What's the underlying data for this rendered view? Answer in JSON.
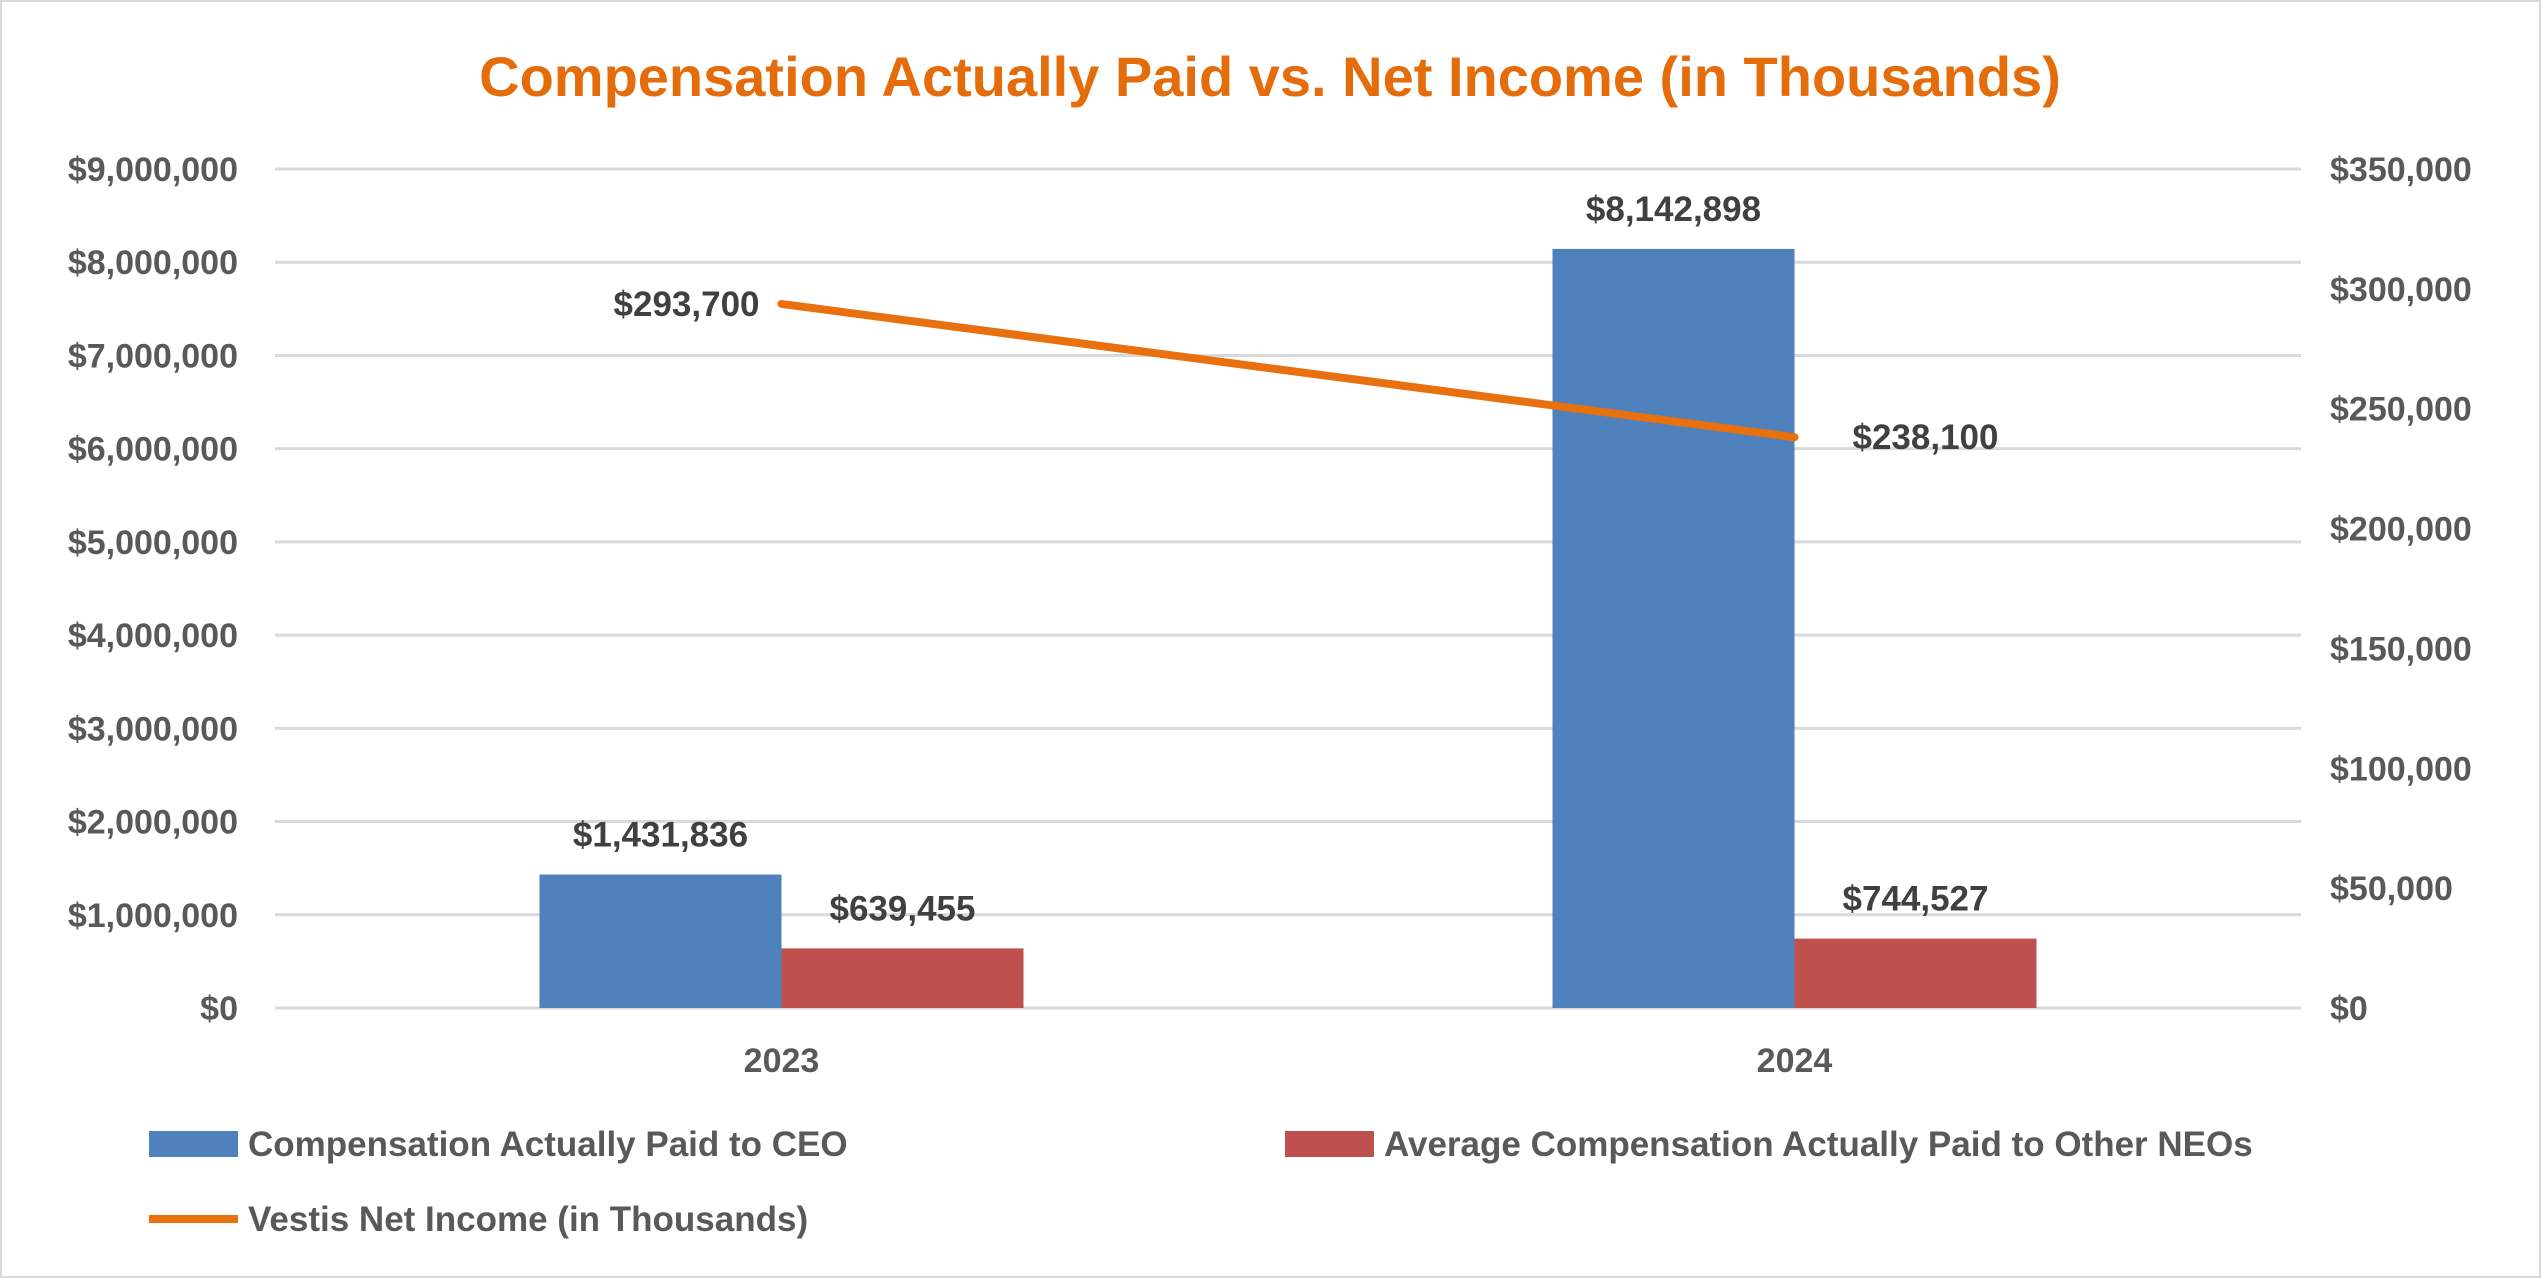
{
  "chart_data": {
    "type": "bar",
    "title": "Compensation Actually Paid vs. Net Income (in Thousands)",
    "categories": [
      "2023",
      "2024"
    ],
    "series": [
      {
        "name": "Compensation Actually Paid to CEO",
        "type": "bar",
        "axis": "left",
        "color": "#4F81BD",
        "values": [
          1431836,
          8142898
        ],
        "labels": [
          "$1,431,836",
          "$8,142,898"
        ]
      },
      {
        "name": "Average Compensation Actually Paid to Other NEOs",
        "type": "bar",
        "axis": "left",
        "color": "#C0504D",
        "values": [
          639455,
          744527
        ],
        "labels": [
          "$639,455",
          "$744,527"
        ]
      },
      {
        "name": "Vestis Net Income (in Thousands)",
        "type": "line",
        "axis": "right",
        "color": "#E8700E",
        "values": [
          293700,
          238100
        ],
        "labels": [
          "$293,700",
          "$238,100"
        ]
      }
    ],
    "y_left": {
      "range": [
        0,
        9000000
      ],
      "ticks": [
        "$0",
        "$1,000,000",
        "$2,000,000",
        "$3,000,000",
        "$4,000,000",
        "$5,000,000",
        "$6,000,000",
        "$7,000,000",
        "$8,000,000",
        "$9,000,000"
      ]
    },
    "y_right": {
      "range": [
        0,
        350000
      ],
      "ticks": [
        "$0",
        "$50,000",
        "$100,000",
        "$150,000",
        "$200,000",
        "$250,000",
        "$300,000",
        "$350,000"
      ]
    },
    "grid": true,
    "legend_position": "bottom",
    "title_color": "#E46C0A"
  }
}
